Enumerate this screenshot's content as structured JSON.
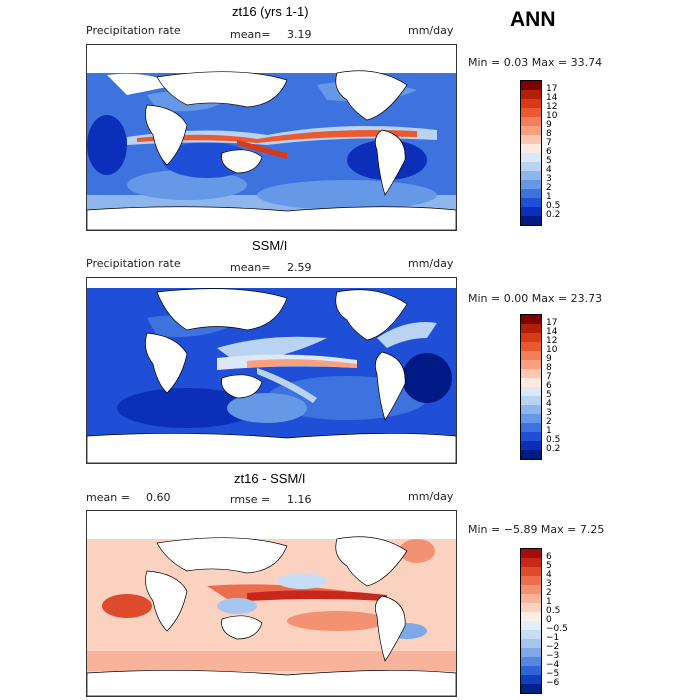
{
  "season": "ANN",
  "panels": [
    {
      "title": "zt16 (yrs 1-1)",
      "left_label": "Precipitation rate",
      "mid_label": "mean=",
      "mid_value": "3.19",
      "units": "mm/day",
      "minmax": "Min =    0.03 Max =   33.74",
      "colorbar": {
        "labels": [
          "17",
          "14",
          "12",
          "10",
          "9",
          "8",
          "7",
          "6",
          "5",
          "4",
          "3",
          "2",
          "1",
          "0.5",
          "0.2"
        ],
        "colors": [
          "#7f0000",
          "#b22008",
          "#d83a18",
          "#ea5a30",
          "#f37e58",
          "#f8a080",
          "#fbc7b0",
          "#fde9df",
          "#dce8f7",
          "#b9d3f2",
          "#8eb6ec",
          "#6598e6",
          "#3d72df",
          "#1f4fd6",
          "#0b2fb8",
          "#001a85"
        ]
      }
    },
    {
      "title": "SSM/I",
      "left_label": "Precipitation rate",
      "mid_label": "mean=",
      "mid_value": "2.59",
      "units": "mm/day",
      "minmax": "Min =    0.00 Max =   23.73",
      "colorbar": {
        "labels": [
          "17",
          "14",
          "12",
          "10",
          "9",
          "8",
          "7",
          "6",
          "5",
          "4",
          "3",
          "2",
          "1",
          "0.5",
          "0.2"
        ],
        "colors": [
          "#7f0000",
          "#b22008",
          "#d83a18",
          "#ea5a30",
          "#f37e58",
          "#f8a080",
          "#fbc7b0",
          "#fde9df",
          "#dce8f7",
          "#b9d3f2",
          "#8eb6ec",
          "#6598e6",
          "#3d72df",
          "#1f4fd6",
          "#0b2fb8",
          "#001a85"
        ]
      }
    },
    {
      "title": "zt16 - SSM/I",
      "left_label": "mean =",
      "left_value": "0.60",
      "mid_label": "rmse =",
      "mid_value": "1.16",
      "units": "mm/day",
      "minmax": "Min =   −5.89  Max =    7.25",
      "colorbar": {
        "labels": [
          "6",
          "5",
          "4",
          "3",
          "2",
          "1",
          "0.5",
          "0",
          "−0.5",
          "−1",
          "−2",
          "−3",
          "−4",
          "−5",
          "−6"
        ],
        "colors": [
          "#a60c0c",
          "#c8281a",
          "#dd4a2c",
          "#ec6e4c",
          "#f39272",
          "#f8b49a",
          "#fbd2c0",
          "#feeee6",
          "#e4eefa",
          "#c8dcf5",
          "#a6c6ef",
          "#7ea8e8",
          "#5688e1",
          "#2f63d6",
          "#1040bd",
          "#00208a"
        ]
      }
    }
  ],
  "chart_data": [
    {
      "type": "heatmap",
      "title": "zt16 (yrs 1-1)",
      "variable": "Precipitation rate",
      "units": "mm/day",
      "mean": 3.19,
      "min": 0.03,
      "max": 33.74,
      "colorbar_levels": [
        0.2,
        0.5,
        1,
        2,
        3,
        4,
        5,
        6,
        7,
        8,
        9,
        10,
        12,
        14,
        17
      ]
    },
    {
      "type": "heatmap",
      "title": "SSM/I",
      "variable": "Precipitation rate",
      "units": "mm/day",
      "mean": 2.59,
      "min": 0.0,
      "max": 23.73,
      "colorbar_levels": [
        0.2,
        0.5,
        1,
        2,
        3,
        4,
        5,
        6,
        7,
        8,
        9,
        10,
        12,
        14,
        17
      ]
    },
    {
      "type": "heatmap",
      "title": "zt16 - SSM/I",
      "units": "mm/day",
      "mean": 0.6,
      "rmse": 1.16,
      "min": -5.89,
      "max": 7.25,
      "colorbar_levels": [
        -6,
        -5,
        -4,
        -3,
        -2,
        -1,
        -0.5,
        0,
        0.5,
        1,
        2,
        3,
        4,
        5,
        6
      ]
    }
  ]
}
